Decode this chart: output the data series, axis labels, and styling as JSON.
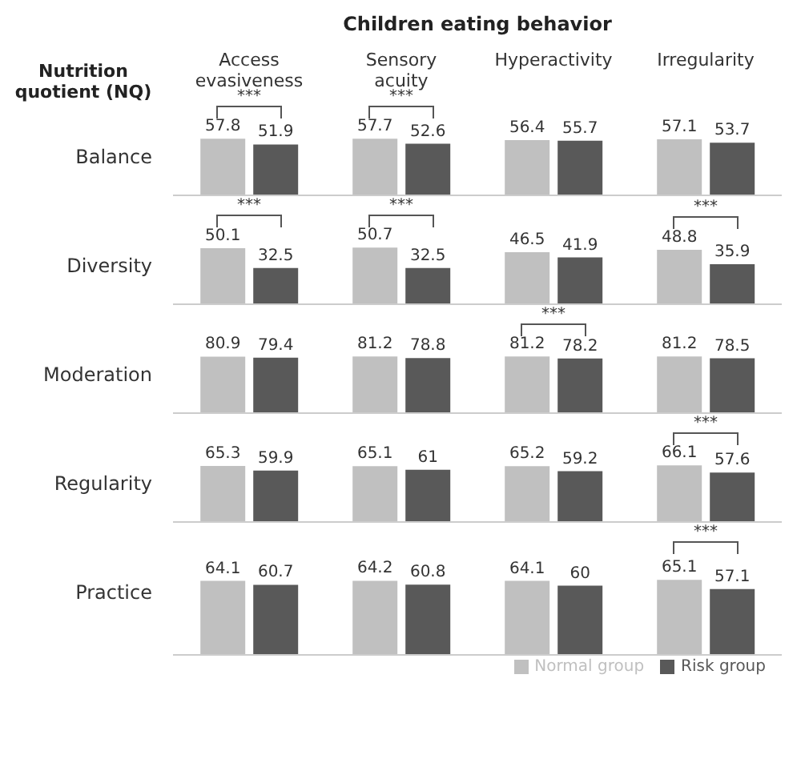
{
  "chart_data": [
    {
      "type": "bar",
      "title": "Children eating behavior",
      "ylabel": "Balance",
      "categories": [
        "Access evasiveness",
        "Sensory acuity",
        "Hyperactivity",
        "Irregularity"
      ],
      "tick_labels": "x",
      "data_labels": true,
      "legend": false,
      "series": [
        {
          "color": "#c0c0c0",
          "values": [
            57.8,
            57.7,
            56.4,
            57.1
          ]
        },
        {
          "color": "#595959",
          "values": [
            51.9,
            52.6,
            55.7,
            53.7
          ]
        }
      ],
      "annotations": [
        "Nutrition quotient (NQ)",
        {
          "text": "***",
          "x": "Access evasiveness",
          "y": 57.8
        },
        {
          "text": "***",
          "x": "Sensory acuity",
          "y": 57.7
        }
      ]
    },
    {
      "type": "bar",
      "ylabel": "Diversity",
      "categories": [
        "Access evasiveness",
        "Sensory acuity",
        "Hyperactivity",
        "Irregularity"
      ],
      "tick_labels": false,
      "data_labels": true,
      "legend": false,
      "series": [
        {
          "color": "#c0c0c0",
          "values": [
            50.1,
            50.7,
            46.5,
            48.8
          ]
        },
        {
          "color": "#595959",
          "values": [
            32.5,
            32.5,
            41.9,
            35.9
          ]
        }
      ],
      "annotations": [
        {
          "text": "***",
          "x": "Access evasiveness",
          "y": 50.1
        },
        {
          "text": "***",
          "x": "Sensory acuity",
          "y": 50.7
        },
        {
          "text": "***",
          "x": "Irregularity",
          "y": 48.8
        }
      ]
    },
    {
      "type": "bar",
      "ylabel": "Moderation",
      "categories": [
        "Access evasiveness",
        "Sensory acuity",
        "Hyperactivity",
        "Irregularity"
      ],
      "tick_labels": false,
      "data_labels": true,
      "legend": false,
      "series": [
        {
          "color": "#c0c0c0",
          "values": [
            80.9,
            81.2,
            81.2,
            81.2
          ]
        },
        {
          "color": "#595959",
          "values": [
            79.4,
            78.8,
            78.2,
            78.5
          ]
        }
      ],
      "annotations": [
        {
          "text": "***",
          "x": "Hyperactivity",
          "y": 81.2
        }
      ]
    },
    {
      "type": "bar",
      "ylabel": "Regularity",
      "categories": [
        "Access evasiveness",
        "Sensory acuity",
        "Hyperactivity",
        "Irregularity"
      ],
      "tick_labels": false,
      "data_labels": true,
      "legend": false,
      "series": [
        {
          "color": "#c0c0c0",
          "values": [
            65.3,
            65.1,
            65.2,
            66.1
          ]
        },
        {
          "color": "#595959",
          "values": [
            59.9,
            61,
            59.2,
            57.6
          ]
        }
      ],
      "annotations": [
        {
          "text": "***",
          "x": "Irregularity",
          "y": 66.1
        }
      ]
    },
    {
      "type": "bar",
      "ylabel": "Practice",
      "categories": [
        "Access evasiveness",
        "Sensory acuity",
        "Hyperactivity",
        "Irregularity"
      ],
      "tick_labels": false,
      "data_labels": true,
      "legend": "bottom right",
      "series": [
        {
          "name": "Normal group",
          "color": "#c0c0c0",
          "values": [
            64.1,
            64.2,
            64.1,
            65.1
          ]
        },
        {
          "name": "Risk group",
          "color": "#595959",
          "values": [
            60.7,
            60.8,
            60,
            57.1
          ]
        }
      ],
      "annotations": [
        {
          "text": "***",
          "x": "Irregularity",
          "y": 65.1
        }
      ]
    }
  ]
}
